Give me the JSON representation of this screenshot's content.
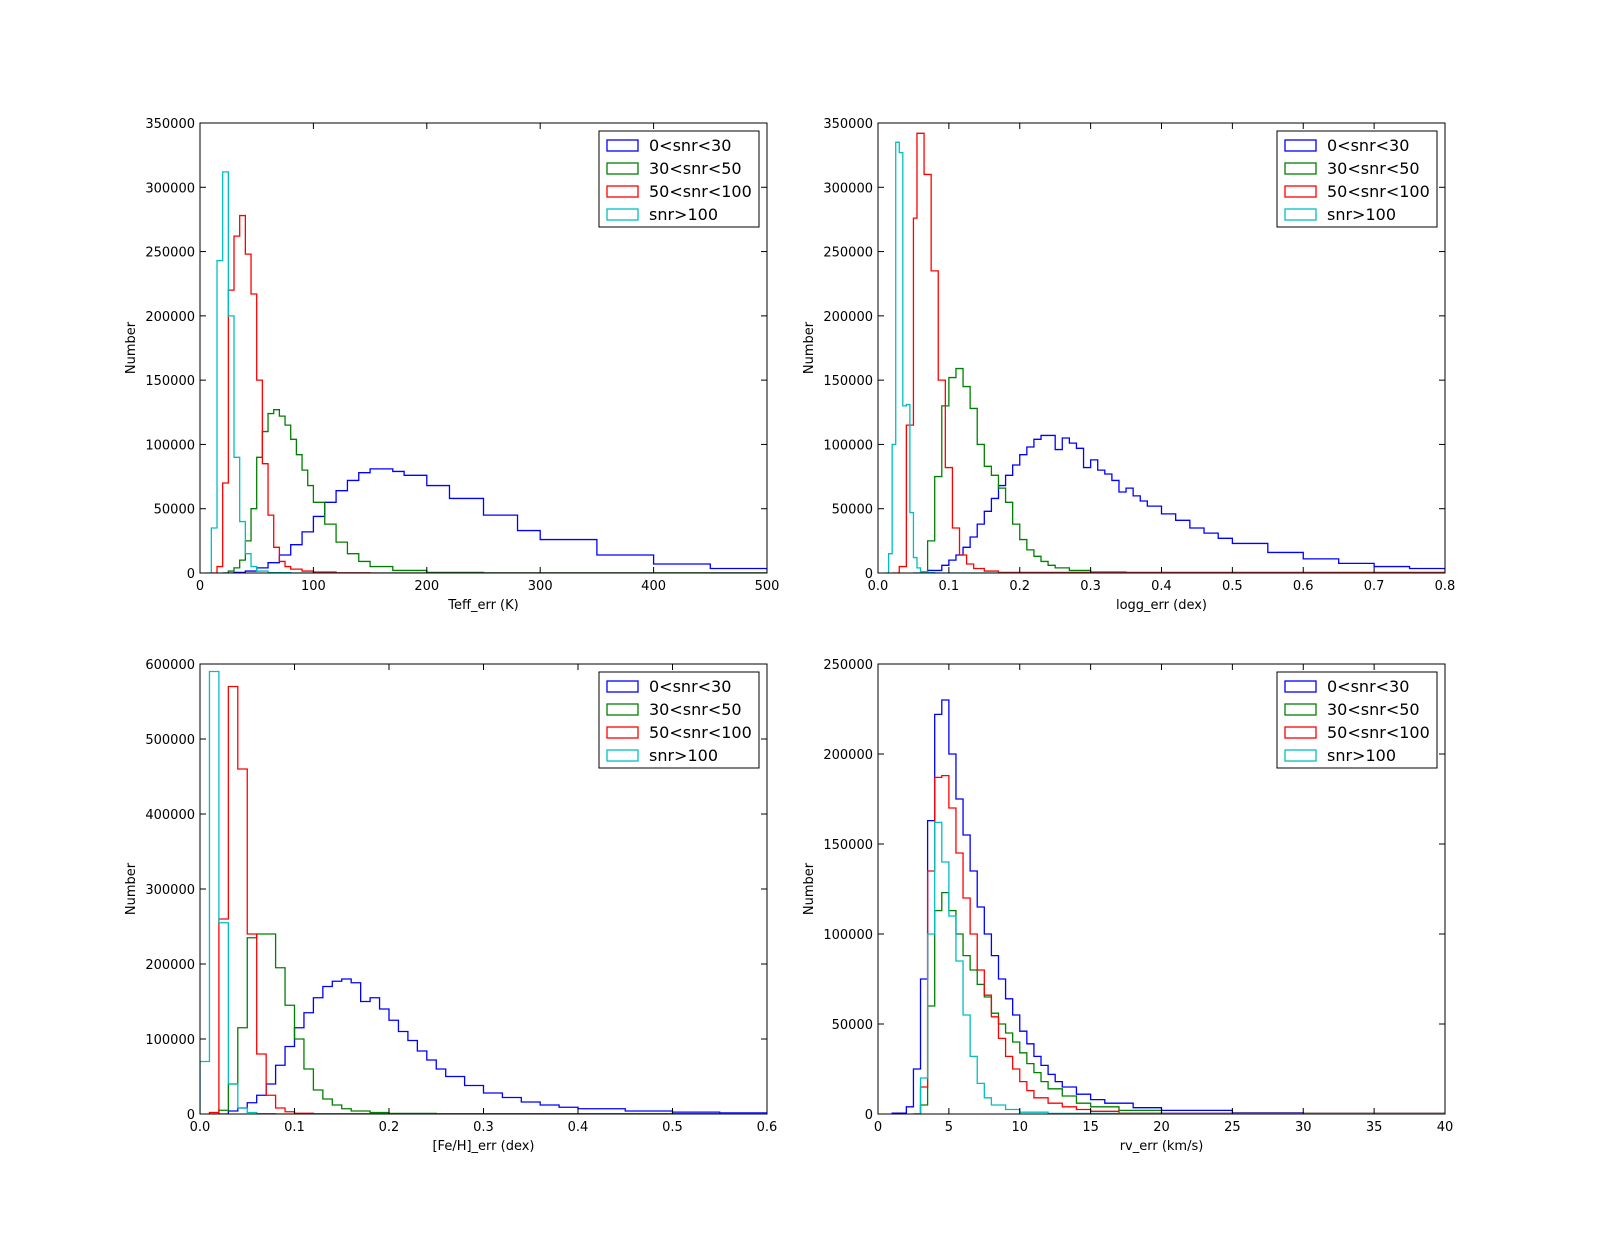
{
  "chart_data": [
    {
      "type": "histogram-step",
      "xlabel": "Teff_err (K)",
      "ylabel": "Number",
      "xlim": [
        0,
        500
      ],
      "ylim": [
        0,
        350000
      ],
      "xticks": [
        "0",
        "100",
        "200",
        "300",
        "400",
        "500"
      ],
      "yticks": [
        "0",
        "50000",
        "100000",
        "150000",
        "200000",
        "250000",
        "300000",
        "350000"
      ],
      "legend": "top-right",
      "series": [
        {
          "name": "0<snr<30",
          "color": "#0000ff",
          "x": [
            20,
            30,
            40,
            50,
            60,
            70,
            80,
            90,
            100,
            110,
            120,
            130,
            140,
            150,
            160,
            170,
            180,
            200,
            220,
            250,
            280,
            300,
            350,
            400,
            450,
            500
          ],
          "y": [
            0,
            500,
            1500,
            4000,
            8000,
            14000,
            22000,
            32000,
            44000,
            55000,
            64000,
            72000,
            78000,
            81000,
            81000,
            79000,
            76000,
            68000,
            58000,
            45000,
            33000,
            26000,
            14000,
            7000,
            3500,
            2000
          ]
        },
        {
          "name": "30<snr<50",
          "color": "#008000",
          "x": [
            20,
            25,
            30,
            35,
            40,
            45,
            50,
            55,
            60,
            65,
            70,
            75,
            80,
            85,
            90,
            95,
            100,
            110,
            120,
            130,
            140,
            150,
            170,
            200,
            250,
            500
          ],
          "y": [
            0,
            1500,
            4000,
            10000,
            25000,
            50000,
            90000,
            110000,
            124000,
            127000,
            122000,
            115000,
            104000,
            92000,
            80000,
            68000,
            55000,
            38000,
            24000,
            15000,
            9000,
            5000,
            2000,
            500,
            100,
            0
          ]
        },
        {
          "name": "50<snr<100",
          "color": "#ff0000",
          "x": [
            10,
            15,
            20,
            25,
            30,
            35,
            40,
            45,
            50,
            55,
            60,
            65,
            70,
            75,
            80,
            90,
            100,
            120,
            150,
            500
          ],
          "y": [
            0,
            5000,
            70000,
            220000,
            262000,
            278000,
            248000,
            217000,
            150000,
            85000,
            45000,
            20000,
            9000,
            5000,
            3000,
            1500,
            800,
            200,
            0,
            0
          ]
        },
        {
          "name": "snr>100",
          "color": "#00bfbf",
          "x": [
            5,
            10,
            15,
            20,
            25,
            30,
            35,
            40,
            45,
            50,
            60,
            80,
            500
          ],
          "y": [
            0,
            35000,
            243000,
            312000,
            200000,
            90000,
            40000,
            15000,
            5000,
            1500,
            300,
            0,
            0
          ]
        }
      ]
    },
    {
      "type": "histogram-step",
      "xlabel": "logg_err (dex)",
      "ylabel": "Number",
      "xlim": [
        0.0,
        0.8
      ],
      "ylim": [
        0,
        350000
      ],
      "xticks": [
        "0.0",
        "0.1",
        "0.2",
        "0.3",
        "0.4",
        "0.5",
        "0.6",
        "0.7",
        "0.8"
      ],
      "yticks": [
        "0",
        "50000",
        "100000",
        "150000",
        "200000",
        "250000",
        "300000",
        "350000"
      ],
      "legend": "top-right",
      "series": [
        {
          "name": "0<snr<30",
          "color": "#0000ff",
          "x": [
            0.05,
            0.07,
            0.09,
            0.1,
            0.11,
            0.12,
            0.13,
            0.14,
            0.15,
            0.16,
            0.17,
            0.18,
            0.19,
            0.2,
            0.21,
            0.22,
            0.23,
            0.24,
            0.25,
            0.26,
            0.27,
            0.28,
            0.29,
            0.3,
            0.31,
            0.32,
            0.33,
            0.34,
            0.35,
            0.36,
            0.37,
            0.38,
            0.4,
            0.42,
            0.44,
            0.46,
            0.48,
            0.5,
            0.55,
            0.6,
            0.65,
            0.7,
            0.75,
            0.8
          ],
          "y": [
            0,
            2000,
            6000,
            10000,
            14000,
            20000,
            28000,
            38000,
            48000,
            58000,
            68000,
            76000,
            84000,
            92000,
            98000,
            104000,
            107000,
            107000,
            96000,
            105000,
            101000,
            97000,
            82000,
            88000,
            80000,
            77000,
            72000,
            63000,
            66000,
            60000,
            56000,
            52000,
            46000,
            41000,
            35000,
            31000,
            27000,
            23000,
            16000,
            11000,
            7500,
            5000,
            3500,
            2000
          ]
        },
        {
          "name": "30<snr<50",
          "color": "#008000",
          "x": [
            0.06,
            0.07,
            0.08,
            0.09,
            0.1,
            0.11,
            0.12,
            0.13,
            0.14,
            0.15,
            0.16,
            0.17,
            0.18,
            0.19,
            0.2,
            0.21,
            0.22,
            0.23,
            0.24,
            0.25,
            0.27,
            0.3,
            0.35,
            0.8
          ],
          "y": [
            0,
            25000,
            75000,
            130000,
            152000,
            159000,
            145000,
            128000,
            100000,
            83000,
            76000,
            66000,
            55000,
            38000,
            26000,
            18000,
            13000,
            9000,
            6000,
            4000,
            2000,
            800,
            100,
            0
          ]
        },
        {
          "name": "50<snr<100",
          "color": "#ff0000",
          "x": [
            0.02,
            0.03,
            0.04,
            0.05,
            0.055,
            0.065,
            0.075,
            0.085,
            0.095,
            0.105,
            0.115,
            0.125,
            0.135,
            0.15,
            0.17,
            0.8
          ],
          "y": [
            0,
            5000,
            115000,
            276000,
            342000,
            310000,
            235000,
            150000,
            82000,
            35000,
            14000,
            7000,
            3500,
            1500,
            500,
            0
          ]
        },
        {
          "name": "snr>100",
          "color": "#00bfbf",
          "x": [
            0.01,
            0.015,
            0.02,
            0.025,
            0.03,
            0.035,
            0.04,
            0.045,
            0.05,
            0.055,
            0.06,
            0.07,
            0.08,
            0.8
          ],
          "y": [
            0,
            15000,
            100000,
            335000,
            327000,
            130000,
            131000,
            47000,
            12000,
            4000,
            1000,
            300,
            0,
            0
          ]
        }
      ]
    },
    {
      "type": "histogram-step",
      "xlabel": "[Fe/H]_err (dex)",
      "ylabel": "Number",
      "xlim": [
        0.0,
        0.6
      ],
      "ylim": [
        0,
        600000
      ],
      "xticks": [
        "0.0",
        "0.1",
        "0.2",
        "0.3",
        "0.4",
        "0.5",
        "0.6"
      ],
      "yticks": [
        "0",
        "100000",
        "200000",
        "300000",
        "400000",
        "500000",
        "600000"
      ],
      "legend": "top-right",
      "series": [
        {
          "name": "0<snr<30",
          "color": "#0000ff",
          "x": [
            0.02,
            0.03,
            0.04,
            0.05,
            0.06,
            0.07,
            0.08,
            0.09,
            0.1,
            0.11,
            0.12,
            0.13,
            0.14,
            0.15,
            0.16,
            0.17,
            0.18,
            0.19,
            0.2,
            0.21,
            0.22,
            0.23,
            0.24,
            0.25,
            0.26,
            0.28,
            0.3,
            0.32,
            0.34,
            0.36,
            0.38,
            0.4,
            0.45,
            0.5,
            0.55,
            0.6
          ],
          "y": [
            0,
            4000,
            8000,
            15000,
            25000,
            40000,
            65000,
            90000,
            115000,
            135000,
            155000,
            170000,
            177000,
            180000,
            175000,
            150000,
            155000,
            140000,
            125000,
            110000,
            98000,
            84000,
            72000,
            60000,
            50000,
            38000,
            28000,
            22000,
            16000,
            12000,
            9000,
            7000,
            4000,
            2500,
            1500,
            500
          ]
        },
        {
          "name": "30<snr<50",
          "color": "#008000",
          "x": [
            0.01,
            0.02,
            0.03,
            0.04,
            0.05,
            0.06,
            0.07,
            0.08,
            0.09,
            0.1,
            0.11,
            0.12,
            0.13,
            0.14,
            0.15,
            0.16,
            0.18,
            0.2,
            0.25,
            0.6
          ],
          "y": [
            0,
            5000,
            40000,
            115000,
            235000,
            240000,
            240000,
            195000,
            145000,
            100000,
            60000,
            32000,
            20000,
            12000,
            7000,
            4000,
            2000,
            800,
            100,
            0
          ]
        },
        {
          "name": "50<snr<100",
          "color": "#ff0000",
          "x": [
            0.01,
            0.02,
            0.03,
            0.04,
            0.05,
            0.06,
            0.07,
            0.08,
            0.09,
            0.1,
            0.12,
            0.6
          ],
          "y": [
            2000,
            260000,
            570000,
            460000,
            240000,
            80000,
            25000,
            8000,
            3000,
            1000,
            300,
            0
          ]
        },
        {
          "name": "snr>100",
          "color": "#00bfbf",
          "x": [
            0.0,
            0.01,
            0.02,
            0.03,
            0.04,
            0.05,
            0.06,
            0.08,
            0.6
          ],
          "y": [
            70000,
            590000,
            255000,
            40000,
            8000,
            2000,
            500,
            0,
            0
          ]
        }
      ]
    },
    {
      "type": "histogram-step",
      "xlabel": "rv_err (km/s)",
      "ylabel": "Number",
      "xlim": [
        0,
        40
      ],
      "ylim": [
        0,
        250000
      ],
      "xticks": [
        "0",
        "5",
        "10",
        "15",
        "20",
        "25",
        "30",
        "35",
        "40"
      ],
      "yticks": [
        "0",
        "50000",
        "100000",
        "150000",
        "200000",
        "250000"
      ],
      "legend": "top-right",
      "series": [
        {
          "name": "0<snr<30",
          "color": "#0000ff",
          "x": [
            1.0,
            2.0,
            2.5,
            3.0,
            3.5,
            4.0,
            4.5,
            5.0,
            5.5,
            6.0,
            6.5,
            7.0,
            7.5,
            8.0,
            8.5,
            9.0,
            9.5,
            10.0,
            10.5,
            11.0,
            11.5,
            12.0,
            12.5,
            13.0,
            14.0,
            15.0,
            16.0,
            18.0,
            20.0,
            25.0,
            30.0,
            40.0
          ],
          "y": [
            500,
            4000,
            25000,
            75000,
            163000,
            222000,
            230000,
            200000,
            175000,
            155000,
            135000,
            115000,
            100000,
            88000,
            75000,
            64000,
            55000,
            46000,
            39000,
            32000,
            27000,
            22000,
            18000,
            15000,
            11000,
            8000,
            6000,
            3500,
            2000,
            700,
            200,
            0
          ]
        },
        {
          "name": "30<snr<50",
          "color": "#008000",
          "x": [
            2.5,
            3.0,
            3.5,
            4.0,
            4.5,
            5.0,
            5.5,
            6.0,
            6.5,
            7.0,
            7.5,
            8.0,
            8.5,
            9.0,
            9.5,
            10.0,
            10.5,
            11.0,
            11.5,
            12.0,
            13.0,
            14.0,
            15.0,
            17.0,
            20.0,
            40.0
          ],
          "y": [
            0,
            5000,
            60000,
            113000,
            123000,
            113000,
            100000,
            88000,
            80000,
            72000,
            65000,
            56000,
            50000,
            45000,
            40000,
            34000,
            28000,
            23000,
            18000,
            14000,
            10000,
            6000,
            4000,
            2000,
            500,
            0
          ]
        },
        {
          "name": "50<snr<100",
          "color": "#ff0000",
          "x": [
            2.5,
            3.0,
            3.5,
            4.0,
            4.5,
            5.0,
            5.5,
            6.0,
            6.5,
            7.0,
            7.5,
            8.0,
            8.5,
            9.0,
            9.5,
            10.0,
            10.5,
            11.0,
            12.0,
            13.0,
            14.0,
            15.0,
            17.0,
            40.0
          ],
          "y": [
            0,
            15000,
            135000,
            187000,
            188000,
            170000,
            145000,
            120000,
            100000,
            80000,
            66000,
            54000,
            42000,
            32000,
            25000,
            18000,
            13000,
            9000,
            6000,
            4000,
            2500,
            1500,
            500,
            0
          ]
        },
        {
          "name": "snr>100",
          "color": "#00bfbf",
          "x": [
            2.5,
            3.0,
            3.5,
            4.0,
            4.5,
            5.0,
            5.5,
            6.0,
            6.5,
            7.0,
            7.5,
            8.0,
            9.0,
            10.0,
            12.0,
            40.0
          ],
          "y": [
            0,
            20000,
            100000,
            162000,
            140000,
            110000,
            85000,
            55000,
            32000,
            17000,
            9000,
            5000,
            2500,
            1000,
            300,
            0
          ]
        }
      ]
    }
  ]
}
